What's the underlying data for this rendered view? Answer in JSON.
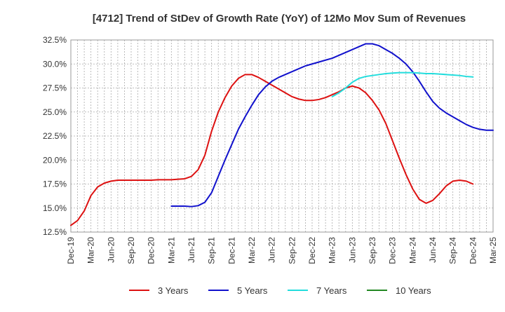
{
  "chart_data": {
    "type": "line",
    "title": "[4712]  Trend of StDev of Growth Rate (YoY) of 12Mo Mov Sum of Revenues",
    "xlabel": "",
    "ylabel": "",
    "ylim": [
      12.5,
      32.5
    ],
    "yticks": [
      "12.5%",
      "15.0%",
      "17.5%",
      "20.0%",
      "22.5%",
      "25.0%",
      "27.5%",
      "30.0%",
      "32.5%"
    ],
    "ytick_values": [
      12.5,
      15.0,
      17.5,
      20.0,
      22.5,
      25.0,
      27.5,
      30.0,
      32.5
    ],
    "xticks": [
      "Dec-19",
      "Mar-20",
      "Jun-20",
      "Sep-20",
      "Dec-20",
      "Mar-21",
      "Jun-21",
      "Sep-21",
      "Dec-21",
      "Mar-22",
      "Jun-22",
      "Sep-22",
      "Dec-22",
      "Mar-23",
      "Jun-23",
      "Sep-23",
      "Dec-23",
      "Mar-24",
      "Jun-24",
      "Sep-24",
      "Dec-24",
      "Mar-25"
    ],
    "x_start": "Dec-19",
    "x_step_months": 1,
    "grid": true,
    "legend_position": "bottom",
    "series": [
      {
        "name": "3 Years",
        "color": "#dd1111",
        "start_index": 0,
        "values": [
          13.2,
          13.7,
          14.7,
          16.3,
          17.2,
          17.6,
          17.8,
          17.9,
          17.9,
          17.9,
          17.9,
          17.9,
          17.9,
          17.95,
          17.95,
          17.95,
          18.0,
          18.05,
          18.3,
          19.0,
          20.5,
          23.0,
          25.0,
          26.5,
          27.7,
          28.5,
          28.9,
          28.9,
          28.6,
          28.2,
          27.8,
          27.4,
          27.0,
          26.6,
          26.35,
          26.2,
          26.2,
          26.3,
          26.5,
          26.8,
          27.1,
          27.5,
          27.7,
          27.5,
          27.0,
          26.2,
          25.2,
          23.8,
          22.0,
          20.2,
          18.5,
          17.0,
          15.9,
          15.5,
          15.8,
          16.5,
          17.3,
          17.8,
          17.9,
          17.8,
          17.5
        ]
      },
      {
        "name": "5 Years",
        "color": "#1111cc",
        "start_index": 15,
        "values": [
          15.2,
          15.2,
          15.2,
          15.15,
          15.25,
          15.6,
          16.6,
          18.3,
          20.0,
          21.6,
          23.2,
          24.5,
          25.7,
          26.8,
          27.6,
          28.2,
          28.6,
          28.9,
          29.2,
          29.5,
          29.8,
          30.0,
          30.2,
          30.4,
          30.6,
          30.9,
          31.2,
          31.5,
          31.8,
          32.1,
          32.1,
          31.9,
          31.5,
          31.1,
          30.6,
          30.0,
          29.2,
          28.2,
          27.1,
          26.1,
          25.4,
          24.9,
          24.5,
          24.1,
          23.7,
          23.4,
          23.2,
          23.1,
          23.1
        ]
      },
      {
        "name": "7 Years",
        "color": "#22dddd",
        "start_index": 39,
        "values": [
          26.6,
          27.0,
          27.5,
          28.1,
          28.5,
          28.7,
          28.8,
          28.9,
          29.0,
          29.05,
          29.1,
          29.1,
          29.1,
          29.05,
          29.0,
          29.0,
          28.95,
          28.9,
          28.85,
          28.8,
          28.7,
          28.65
        ]
      },
      {
        "name": "10 Years",
        "color": "#228822",
        "start_index": 0,
        "values": []
      }
    ]
  }
}
